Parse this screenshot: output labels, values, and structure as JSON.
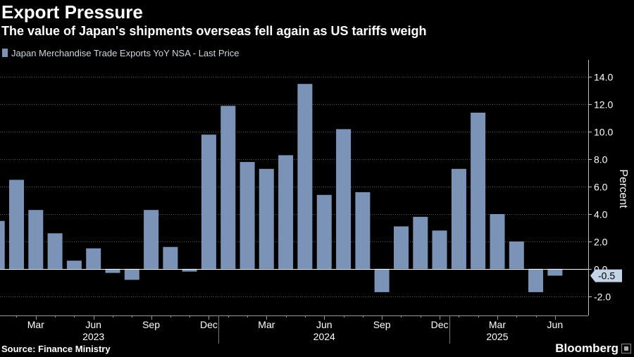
{
  "header": {
    "title": "Export Pressure",
    "subtitle": "The value of Japan's shipments overseas fell again as US tariffs weigh"
  },
  "legend": {
    "label": "Japan Merchandise Trade Exports YoY NSA - Last Price",
    "color": "#7b93b6"
  },
  "footer": {
    "source": "Source: Finance Ministry",
    "brand": "Bloomberg"
  },
  "chart_data": {
    "type": "bar",
    "title": "Export Pressure",
    "subtitle": "The value of Japan's shipments overseas fell again as US tariffs weigh",
    "ylabel": "Percent",
    "xlabel": "",
    "ylim": [
      -3.4,
      15.0
    ],
    "yticks": [
      -2.0,
      0.0,
      2.0,
      4.0,
      6.0,
      8.0,
      10.0,
      12.0,
      14.0
    ],
    "ytick_labels": [
      "-2.0",
      "0.0",
      "2.0",
      "4.0",
      "6.0",
      "8.0",
      "10.0",
      "12.0",
      "14.0"
    ],
    "grid": true,
    "legend_position": "top-left",
    "bar_color": "#7b93b6",
    "categories": [
      "2023-01",
      "2023-02",
      "2023-03",
      "2023-04",
      "2023-05",
      "2023-06",
      "2023-07",
      "2023-08",
      "2023-09",
      "2023-10",
      "2023-11",
      "2023-12",
      "2024-01",
      "2024-02",
      "2024-03",
      "2024-04",
      "2024-05",
      "2024-06",
      "2024-07",
      "2024-08",
      "2024-09",
      "2024-10",
      "2024-11",
      "2024-12",
      "2025-01",
      "2025-02",
      "2025-03",
      "2025-04",
      "2025-05",
      "2025-06"
    ],
    "series": [
      {
        "name": "Japan Merchandise Trade Exports YoY NSA - Last Price",
        "values": [
          3.5,
          6.5,
          4.3,
          2.6,
          0.6,
          1.5,
          -0.3,
          -0.8,
          4.3,
          1.6,
          -0.2,
          9.8,
          11.9,
          7.8,
          7.3,
          8.3,
          13.5,
          5.4,
          10.2,
          5.6,
          -1.7,
          3.1,
          3.8,
          2.8,
          7.3,
          11.4,
          4.0,
          2.0,
          -1.7,
          -0.5
        ]
      }
    ],
    "x_month_ticks": [
      "Mar",
      "Jun",
      "Sep",
      "Dec",
      "Mar",
      "Jun",
      "Sep",
      "Dec",
      "Mar",
      "Jun"
    ],
    "x_year_labels": [
      "2023",
      "2024",
      "2025"
    ],
    "last_value_label": "-0.5"
  }
}
